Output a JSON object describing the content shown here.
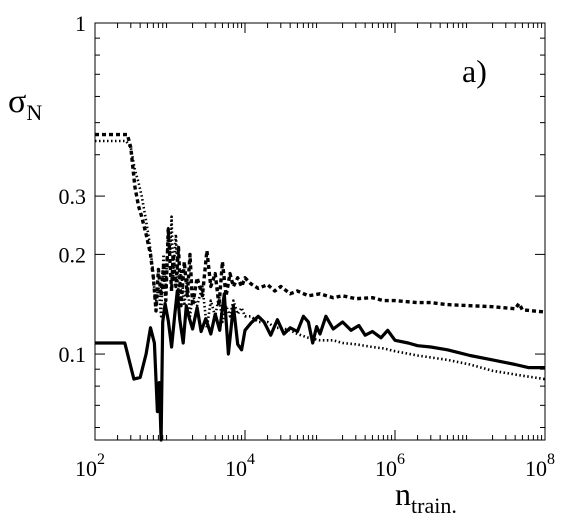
{
  "chart_data": {
    "type": "line",
    "title": "",
    "panel_label": "a)",
    "ylabel": "σ",
    "ylabel_sub": "N",
    "xlabel": "n",
    "xlabel_sub": "train.",
    "x_scale": "log",
    "y_scale": "log",
    "xlim": [
      100,
      100000000
    ],
    "ylim": [
      0.055,
      1.0
    ],
    "grid": false,
    "legend": "none",
    "x_ticks": [
      {
        "value": 100,
        "base": "10",
        "exp": "2"
      },
      {
        "value": 10000,
        "base": "10",
        "exp": "4"
      },
      {
        "value": 1000000,
        "base": "10",
        "exp": "6"
      },
      {
        "value": 100000000,
        "base": "10",
        "exp": "8"
      }
    ],
    "y_ticks": [
      {
        "value": 1.0,
        "label": "1"
      },
      {
        "value": 0.3,
        "label": "0.3"
      },
      {
        "value": 0.2,
        "label": "0.2"
      },
      {
        "value": 0.1,
        "label": "0.1"
      }
    ],
    "series": [
      {
        "style": "solid",
        "color": "#000000",
        "x": [
          100,
          150,
          250,
          330,
          400,
          480,
          550,
          620,
          680,
          720,
          760,
          800,
          860,
          950,
          1050,
          1150,
          1250,
          1350,
          1500,
          1650,
          1800,
          2000,
          2300,
          2600,
          3000,
          3500,
          4000,
          4600,
          5300,
          6000,
          7000,
          8000,
          9000,
          10000,
          12000,
          15000,
          18000,
          22000,
          27000,
          33000,
          40000,
          50000,
          60000,
          70000,
          80000,
          90000,
          100000,
          120000,
          150000,
          200000,
          260000,
          330000,
          400000,
          500000,
          650000,
          800000,
          1000000,
          1500000,
          2000000,
          3000000,
          5000000,
          7000000,
          10000000,
          20000000,
          40000000,
          60000000,
          100000000
        ],
        "y": [
          0.108,
          0.108,
          0.108,
          0.084,
          0.085,
          0.1,
          0.12,
          0.108,
          0.067,
          0.082,
          0.055,
          0.125,
          0.142,
          0.126,
          0.105,
          0.13,
          0.155,
          0.127,
          0.108,
          0.14,
          0.129,
          0.119,
          0.138,
          0.117,
          0.128,
          0.115,
          0.132,
          0.118,
          0.152,
          0.1,
          0.14,
          0.107,
          0.103,
          0.118,
          0.124,
          0.13,
          0.125,
          0.114,
          0.127,
          0.115,
          0.12,
          0.117,
          0.13,
          0.125,
          0.108,
          0.121,
          0.115,
          0.13,
          0.119,
          0.125,
          0.118,
          0.122,
          0.114,
          0.117,
          0.112,
          0.118,
          0.11,
          0.108,
          0.106,
          0.105,
          0.103,
          0.101,
          0.099,
          0.096,
          0.093,
          0.091,
          0.091
        ]
      },
      {
        "style": "dashed",
        "color": "#000000",
        "x": [
          100,
          150,
          200,
          270,
          300,
          340,
          380,
          420,
          480,
          550,
          600,
          650,
          700,
          760,
          820,
          880,
          950,
          1000,
          1050,
          1100,
          1200,
          1300,
          1400,
          1550,
          1700,
          1850,
          2000,
          2300,
          2700,
          3100,
          3500,
          4000,
          4500,
          5000,
          5600,
          6300,
          7000,
          8000,
          9000,
          10000,
          12000,
          15000,
          20000,
          25000,
          30000,
          40000,
          50000,
          70000,
          100000,
          150000,
          200000,
          300000,
          500000,
          700000,
          1000000,
          2000000,
          3000000,
          5000000,
          10000000,
          20000000,
          40000000,
          45000000,
          50000000,
          70000000,
          100000000
        ],
        "y": [
          0.46,
          0.46,
          0.46,
          0.46,
          0.42,
          0.32,
          0.28,
          0.26,
          0.23,
          0.2,
          0.17,
          0.135,
          0.18,
          0.15,
          0.185,
          0.145,
          0.24,
          0.19,
          0.155,
          0.2,
          0.16,
          0.21,
          0.14,
          0.19,
          0.15,
          0.2,
          0.14,
          0.17,
          0.15,
          0.205,
          0.16,
          0.175,
          0.14,
          0.19,
          0.15,
          0.175,
          0.16,
          0.17,
          0.16,
          0.17,
          0.163,
          0.158,
          0.162,
          0.155,
          0.16,
          0.152,
          0.155,
          0.15,
          0.152,
          0.148,
          0.15,
          0.147,
          0.148,
          0.145,
          0.145,
          0.143,
          0.143,
          0.141,
          0.14,
          0.139,
          0.137,
          0.142,
          0.136,
          0.135,
          0.134
        ]
      },
      {
        "style": "dotted",
        "color": "#000000",
        "x": [
          100,
          150,
          200,
          260,
          300,
          340,
          380,
          420,
          470,
          530,
          590,
          640,
          700,
          760,
          820,
          880,
          950,
          1000,
          1050,
          1100,
          1200,
          1300,
          1400,
          1550,
          1700,
          1850,
          2000,
          2300,
          2700,
          3100,
          3500,
          4000,
          4500,
          5000,
          5600,
          6300,
          7000,
          8000,
          9000,
          10000,
          12000,
          15000,
          20000,
          25000,
          30000,
          40000,
          50000,
          70000,
          100000,
          150000,
          200000,
          300000,
          500000,
          700000,
          1000000,
          2000000,
          5000000,
          10000000,
          20000000,
          50000000,
          100000000
        ],
        "y": [
          0.44,
          0.44,
          0.44,
          0.44,
          0.42,
          0.36,
          0.33,
          0.3,
          0.26,
          0.22,
          0.18,
          0.14,
          0.16,
          0.13,
          0.2,
          0.16,
          0.24,
          0.2,
          0.26,
          0.17,
          0.23,
          0.15,
          0.18,
          0.14,
          0.17,
          0.13,
          0.15,
          0.14,
          0.16,
          0.12,
          0.145,
          0.13,
          0.15,
          0.125,
          0.14,
          0.13,
          0.145,
          0.132,
          0.138,
          0.13,
          0.13,
          0.125,
          0.125,
          0.12,
          0.12,
          0.118,
          0.115,
          0.112,
          0.11,
          0.11,
          0.108,
          0.107,
          0.105,
          0.104,
          0.102,
          0.099,
          0.096,
          0.093,
          0.089,
          0.086,
          0.084
        ]
      }
    ]
  }
}
